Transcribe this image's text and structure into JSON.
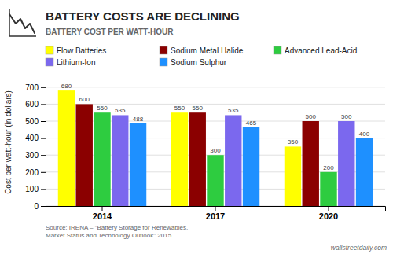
{
  "chart_data": {
    "type": "bar",
    "title": "BATTERY COSTS ARE DECLINING",
    "subtitle": "BATTERY COST PER WATT-HOUR",
    "y_label": "Cost per watt-hour (in dollars)",
    "annotations": [
      "Source: IRENA – \"Battery Storage for Renewables,\nMarket Status and Technology Outlook\" 2015",
      "wallstreetdaily.com"
    ],
    "categories": [
      "2014",
      "2017",
      "2020"
    ],
    "series": [
      {
        "name": "Flow Batteries",
        "color": "#ffff00",
        "values": [
          680,
          550,
          350
        ]
      },
      {
        "name": "Sodium Metal Halide",
        "color": "#8b0000",
        "values": [
          600,
          550,
          500
        ]
      },
      {
        "name": "Advanced Lead-Acid",
        "color": "#2ecc40",
        "values": [
          550,
          300,
          200
        ]
      },
      {
        "name": "Lithium-Ion",
        "color": "#7b68ee",
        "values": [
          535,
          535,
          500
        ]
      },
      {
        "name": "Sodium Sulphur",
        "color": "#1e90ff",
        "values": [
          488,
          465,
          400
        ]
      }
    ],
    "ylim": [
      0,
      750
    ],
    "yticks": [
      0,
      100,
      200,
      300,
      400,
      500,
      600,
      700
    ],
    "grid": true,
    "legend": "top",
    "data_labels": true
  }
}
